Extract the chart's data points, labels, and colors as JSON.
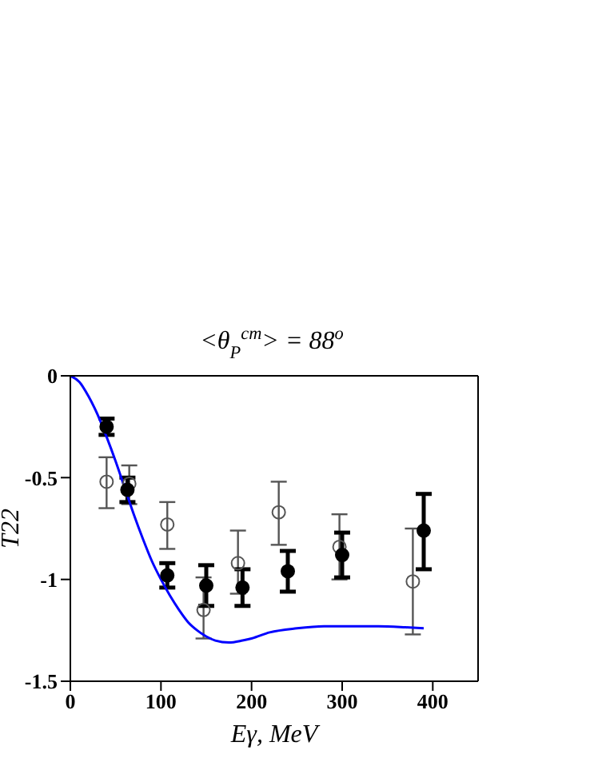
{
  "chart_data": {
    "type": "scatter",
    "title": "<θ$_{P}$$^{cm}$> = 88$^{o}$",
    "xlabel": "Eγ, MeV",
    "ylabel": "T22",
    "xlim": [
      0,
      450
    ],
    "xticks": [
      0,
      100,
      200,
      300,
      400
    ],
    "ylim": [
      -1.5,
      0
    ],
    "yticks": [
      0,
      -0.5,
      -1,
      -1.5
    ],
    "grid": false,
    "series": [
      {
        "color": "#555555",
        "marker": "circle",
        "x": [
          40,
          65,
          107,
          147,
          185,
          230,
          297,
          378
        ],
        "values": [
          -0.52,
          -0.53,
          -0.73,
          -1.15,
          -0.92,
          -0.67,
          -0.84,
          -1.01
        ],
        "errors": [
          [
            -0.65,
            -0.4
          ],
          [
            -0.63,
            -0.44
          ],
          [
            -0.85,
            -0.62
          ],
          [
            -1.29,
            -0.99
          ],
          [
            -1.07,
            -0.76
          ],
          [
            -0.83,
            -0.52
          ],
          [
            -1.0,
            -0.68
          ],
          [
            -1.27,
            -0.75
          ]
        ]
      },
      {
        "color": "#000000",
        "marker": "circle",
        "x": [
          40,
          63,
          107,
          150,
          190,
          240,
          300,
          390
        ],
        "values": [
          -0.25,
          -0.56,
          -0.98,
          -1.03,
          -1.04,
          -0.96,
          -0.88,
          -0.76
        ],
        "errors": [
          [
            -0.29,
            -0.21
          ],
          [
            -0.62,
            -0.5
          ],
          [
            -1.04,
            -0.92
          ],
          [
            -1.13,
            -0.93
          ],
          [
            -1.13,
            -0.95
          ],
          [
            -1.06,
            -0.86
          ],
          [
            -0.99,
            -0.77
          ],
          [
            -0.95,
            -0.58
          ]
        ]
      },
      {
        "type": "line",
        "color": "#0000ff",
        "line_style": "solid",
        "marker": "none",
        "x": [
          0,
          10,
          20,
          30,
          40,
          50,
          60,
          70,
          80,
          90,
          100,
          110,
          120,
          130,
          140,
          150,
          160,
          175,
          190,
          200,
          220,
          250,
          280,
          300,
          340,
          370,
          390
        ],
        "values": [
          0,
          -0.03,
          -0.1,
          -0.19,
          -0.3,
          -0.42,
          -0.55,
          -0.68,
          -0.8,
          -0.91,
          -1.0,
          -1.08,
          -1.15,
          -1.21,
          -1.25,
          -1.28,
          -1.3,
          -1.31,
          -1.3,
          -1.29,
          -1.26,
          -1.24,
          -1.23,
          -1.23,
          -1.23,
          -1.235,
          -1.24
        ]
      }
    ]
  }
}
